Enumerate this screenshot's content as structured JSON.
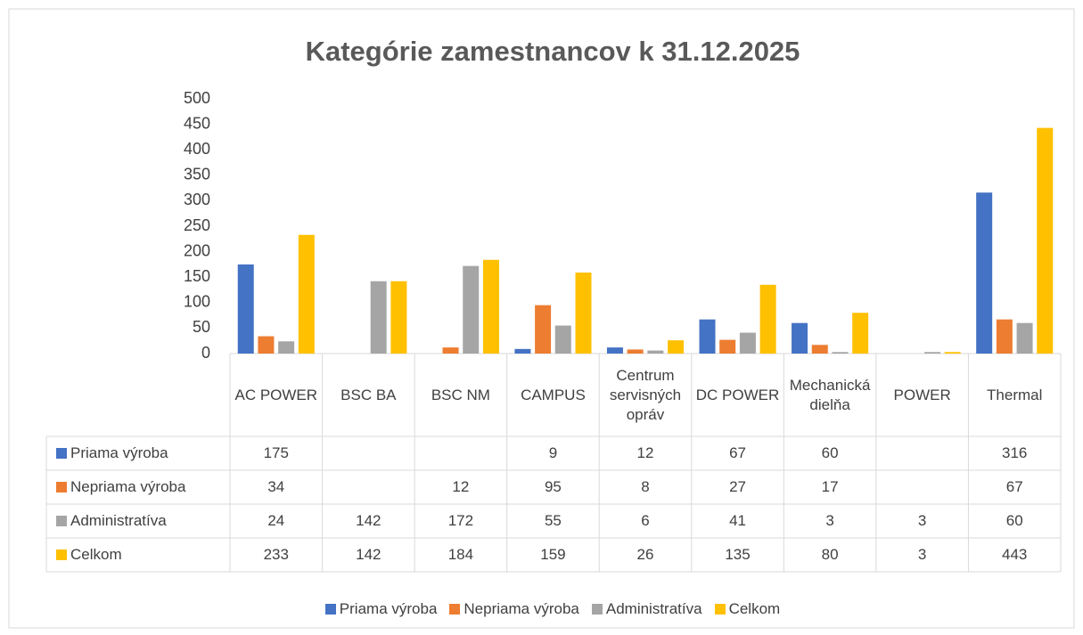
{
  "chart_data": {
    "type": "bar",
    "title": "Kategórie zamestnancov k 31.12.2025",
    "categories": [
      "AC POWER",
      "BSC BA",
      "BSC NM",
      "CAMPUS",
      "Centrum servisných opráv",
      "DC POWER",
      "Mechanická dielňa",
      "POWER",
      "Thermal"
    ],
    "series": [
      {
        "name": "Priama výroba",
        "color": "#4472c4",
        "values": [
          175,
          null,
          null,
          9,
          12,
          67,
          60,
          null,
          316
        ]
      },
      {
        "name": "Nepriama výroba",
        "color": "#ed7d31",
        "values": [
          34,
          null,
          12,
          95,
          8,
          27,
          17,
          null,
          67
        ]
      },
      {
        "name": "Administratíva",
        "color": "#a5a5a5",
        "values": [
          24,
          142,
          172,
          55,
          6,
          41,
          3,
          3,
          60
        ]
      },
      {
        "name": "Celkom",
        "color": "#ffc000",
        "values": [
          233,
          142,
          184,
          159,
          26,
          135,
          80,
          3,
          443
        ]
      }
    ],
    "ylim": [
      0,
      500
    ],
    "yticks": [
      0,
      50,
      100,
      150,
      200,
      250,
      300,
      350,
      400,
      450,
      500
    ],
    "grid": false,
    "data_table": true,
    "legend": "bottom"
  }
}
